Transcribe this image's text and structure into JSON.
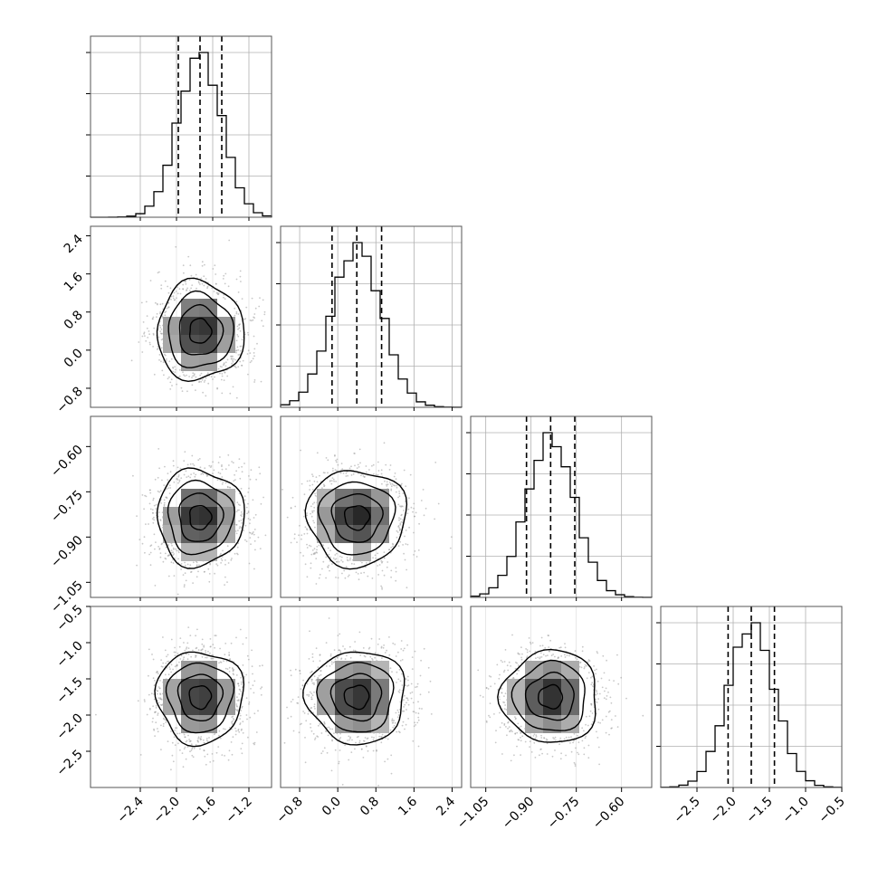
{
  "chart_data": {
    "type": "corner",
    "parameters": [
      {
        "range": [
          -2.95,
          -0.95
        ],
        "ticks": [
          -2.4,
          -2.0,
          -1.6,
          -1.2
        ],
        "tick_labels": [
          "−2.4",
          "−2.0",
          "−1.6",
          "−1.2"
        ],
        "quantiles": [
          -1.98,
          -1.74,
          -1.5
        ],
        "mean": -1.74,
        "sd": 0.24
      },
      {
        "range": [
          -1.2,
          2.6
        ],
        "ticks": [
          -0.8,
          0.0,
          0.8,
          1.6,
          2.4
        ],
        "tick_labels": [
          "−0.8",
          "0.0",
          "0.8",
          "1.6",
          "2.4"
        ],
        "quantiles": [
          -0.12,
          0.4,
          0.92
        ],
        "mean": 0.4,
        "sd": 0.52
      },
      {
        "range": [
          -1.1,
          -0.5
        ],
        "ticks": [
          -1.05,
          -0.9,
          -0.75,
          -0.6
        ],
        "tick_labels": [
          "−1.05",
          "−0.90",
          "−0.75",
          "−0.60"
        ],
        "quantiles": [
          -0.915,
          -0.835,
          -0.755
        ],
        "mean": -0.835,
        "sd": 0.08
      },
      {
        "range": [
          -3.0,
          -0.5
        ],
        "ticks": [
          -2.5,
          -2.0,
          -1.5,
          -1.0,
          -0.5
        ],
        "tick_labels": [
          "−2.5",
          "−2.0",
          "−1.5",
          "−1.0",
          "−0.5"
        ],
        "quantiles": [
          -2.07,
          -1.75,
          -1.43
        ],
        "mean": -1.75,
        "sd": 0.32
      }
    ],
    "histogram_bins": 20,
    "quantile_levels": [
      0.16,
      0.5,
      0.84
    ],
    "density_bins": 10,
    "contour_sigma_levels": [
      0.5,
      1.0,
      1.5,
      2.0
    ],
    "grid": true,
    "colors": {
      "line": "#000000",
      "grid": "#b0b0b0",
      "points": "#9a9a9a",
      "frame": "#555555",
      "background": "#ffffff"
    }
  }
}
